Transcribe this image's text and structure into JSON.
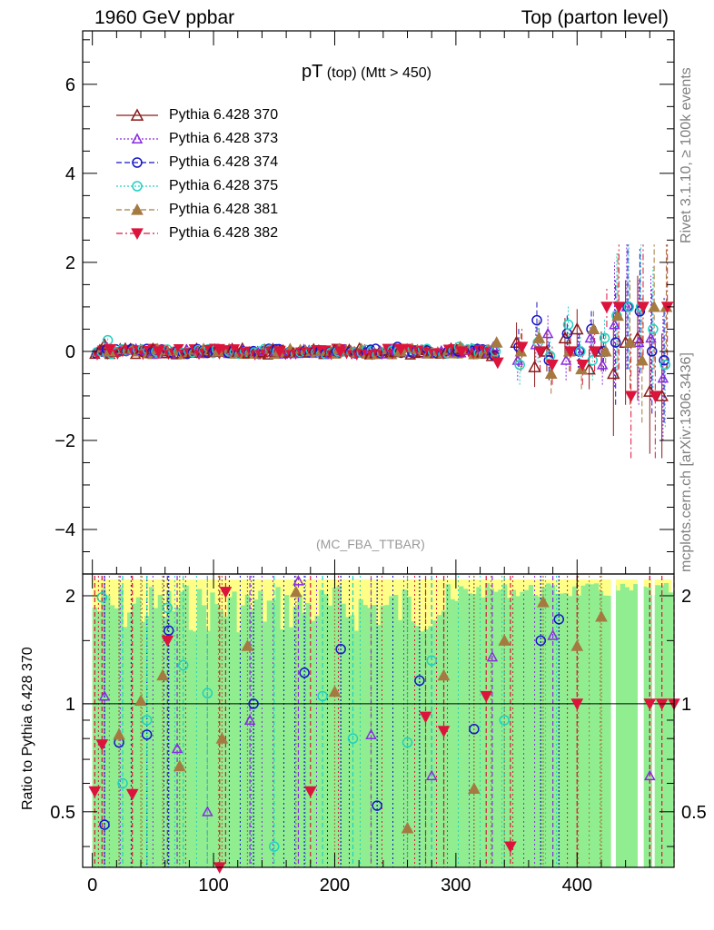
{
  "header": {
    "left": "1960 GeV ppbar",
    "right": "Top (parton level)"
  },
  "side_labels": {
    "rivet": "Rivet 3.1.10, ≥ 100k events",
    "mcplots": "mcplots.cern.ch [arXiv:1306.3436]"
  },
  "plot_title": {
    "main": "pT",
    "sub1": "(top)",
    "sub2": "(Mtt > 450)"
  },
  "analysis": "(MC_FBA_TTBAR)",
  "colors": {
    "s370": "#8b1a1a",
    "s373": "#8a2be2",
    "s374": "#1414c8",
    "s375": "#20d0c0",
    "s381": "#a57a40",
    "s382": "#dc143c",
    "band_yellow": "#ffff88",
    "band_green": "#90ee90"
  },
  "chart_data": [
    {
      "type": "scatter",
      "panel": "main",
      "xlim": [
        -8,
        480
      ],
      "ylim": [
        -5,
        7.2
      ],
      "yticks": [
        "−4",
        "−2",
        "0",
        "2",
        "4",
        "6"
      ],
      "ytick_values": [
        -4,
        -2,
        0,
        2,
        4,
        6
      ],
      "legend_position": "top-left",
      "series": [
        {
          "name": "Pythia 6.428 370",
          "key": "s370",
          "marker": "triangle-open",
          "dash": "solid",
          "x": [
            10,
            50,
            100,
            150,
            200,
            250,
            300,
            330,
            350,
            365,
            375,
            390,
            400,
            410,
            420,
            430,
            440,
            450,
            460,
            470
          ],
          "y": [
            0.15,
            0.05,
            0.0,
            0.0,
            0.02,
            0.0,
            0.05,
            -0.1,
            0.2,
            -0.35,
            0.0,
            0.3,
            0.5,
            -0.4,
            0.0,
            -0.5,
            0.2,
            0.3,
            -0.9,
            -1.0
          ]
        },
        {
          "name": "Pythia 6.428 373",
          "key": "s373",
          "marker": "triangle-open-small",
          "dash": "dotted",
          "x": [
            10,
            50,
            100,
            150,
            200,
            250,
            300,
            330,
            350,
            365,
            375,
            390,
            400,
            410,
            420,
            430,
            440,
            450,
            460,
            470
          ],
          "y": [
            0.1,
            0.0,
            0.05,
            0.0,
            0.0,
            0.05,
            0.0,
            0.1,
            -0.2,
            0.15,
            0.4,
            -0.2,
            0.0,
            0.3,
            -0.3,
            0.6,
            1.0,
            0.2,
            0.3,
            -0.6
          ]
        },
        {
          "name": "Pythia 6.428 374",
          "key": "s374",
          "marker": "circle-open",
          "dash": "dashed",
          "x": [
            10,
            50,
            100,
            150,
            200,
            250,
            300,
            330,
            350,
            365,
            375,
            390,
            400,
            410,
            420,
            430,
            440,
            450,
            460,
            470
          ],
          "y": [
            0.05,
            0.0,
            0.0,
            0.05,
            0.0,
            0.1,
            0.0,
            -0.1,
            0.1,
            0.7,
            -0.2,
            0.4,
            0.0,
            0.5,
            0.0,
            0.2,
            1.0,
            0.9,
            0.0,
            -0.2
          ]
        },
        {
          "name": "Pythia 6.428 375",
          "key": "s375",
          "marker": "circle-open",
          "dash": "dotted",
          "x": [
            10,
            50,
            100,
            150,
            200,
            250,
            300,
            330,
            350,
            365,
            375,
            390,
            400,
            410,
            420,
            430,
            440,
            450,
            460,
            470
          ],
          "y": [
            0.25,
            0.0,
            0.05,
            0.0,
            0.0,
            0.0,
            0.1,
            0.0,
            -0.3,
            0.2,
            -0.1,
            0.6,
            0.0,
            -0.2,
            0.3,
            0.8,
            1.0,
            1.0,
            0.5,
            -0.3
          ]
        },
        {
          "name": "Pythia 6.428 381",
          "key": "s381",
          "marker": "triangle-filled",
          "dash": "dashed",
          "x": [
            10,
            50,
            100,
            150,
            200,
            250,
            300,
            330,
            350,
            365,
            375,
            390,
            400,
            410,
            420,
            430,
            440,
            450,
            460,
            470
          ],
          "y": [
            0.0,
            0.05,
            0.0,
            0.0,
            0.05,
            0.0,
            0.1,
            0.2,
            0.0,
            0.3,
            -0.5,
            0.0,
            -0.4,
            0.5,
            0.0,
            0.8,
            0.2,
            -0.2,
            1.0,
            1.0
          ]
        },
        {
          "name": "Pythia 6.428 382",
          "key": "s382",
          "marker": "triangle-down-filled",
          "dash": "dashdot",
          "x": [
            10,
            50,
            100,
            150,
            200,
            250,
            300,
            330,
            350,
            365,
            375,
            390,
            400,
            410,
            420,
            430,
            440,
            450,
            460,
            470
          ],
          "y": [
            0.05,
            0.0,
            0.05,
            0.0,
            0.0,
            0.05,
            0.0,
            -0.25,
            0.1,
            0.0,
            -0.3,
            0.0,
            -0.3,
            0.0,
            1.0,
            1.0,
            -1.0,
            1.0,
            -1.0,
            1.0
          ]
        }
      ]
    },
    {
      "type": "scatter",
      "panel": "ratio",
      "ylabel": "Ratio to Pythia 6.428 370",
      "xlim": [
        -8,
        480
      ],
      "ylim": [
        0.35,
        2.3
      ],
      "log_y": true,
      "xticks": [
        "0",
        "100",
        "200",
        "300",
        "400"
      ],
      "xtick_values": [
        0,
        100,
        200,
        300,
        400
      ],
      "yticks": [
        "0.5",
        "1",
        "2"
      ],
      "ytick_values": [
        0.5,
        1,
        2
      ],
      "series": [
        {
          "key": "s373",
          "marker": "triangle-open-small",
          "x": [
            10,
            70,
            95,
            130,
            170,
            230,
            280,
            330,
            380,
            460
          ],
          "y": [
            1.05,
            0.75,
            0.5,
            0.9,
            2.2,
            0.82,
            0.63,
            1.35,
            1.55,
            0.63
          ]
        },
        {
          "key": "s374",
          "marker": "circle-open",
          "x": [
            10,
            22,
            45,
            63,
            133,
            175,
            205,
            235,
            270,
            315,
            370,
            385
          ],
          "y": [
            0.46,
            0.78,
            0.82,
            1.6,
            1.0,
            1.22,
            1.42,
            0.52,
            1.16,
            0.85,
            1.5,
            1.72
          ]
        },
        {
          "key": "s375",
          "marker": "circle-open",
          "x": [
            8,
            25,
            45,
            62,
            75,
            95,
            150,
            190,
            215,
            260,
            280,
            340
          ],
          "y": [
            1.98,
            0.6,
            0.9,
            1.85,
            1.28,
            1.07,
            0.4,
            1.05,
            0.8,
            0.78,
            1.32,
            0.9
          ]
        },
        {
          "key": "s381",
          "marker": "triangle-filled",
          "x": [
            22,
            40,
            58,
            72,
            107,
            128,
            168,
            200,
            260,
            290,
            315,
            340,
            372,
            400,
            420
          ],
          "y": [
            0.82,
            1.02,
            1.2,
            0.67,
            0.8,
            1.45,
            2.05,
            1.08,
            0.45,
            1.2,
            0.58,
            1.5,
            1.92,
            1.45,
            1.75
          ]
        },
        {
          "key": "s382",
          "marker": "triangle-down-filled",
          "x": [
            2,
            8,
            33,
            62,
            105,
            110,
            180,
            275,
            290,
            325,
            345,
            400,
            460,
            470,
            480
          ],
          "y": [
            0.57,
            0.77,
            0.56,
            1.5,
            0.35,
            2.05,
            0.57,
            0.92,
            0.84,
            1.05,
            0.4,
            1.0,
            1.0,
            1.0,
            1.0
          ]
        }
      ]
    }
  ]
}
